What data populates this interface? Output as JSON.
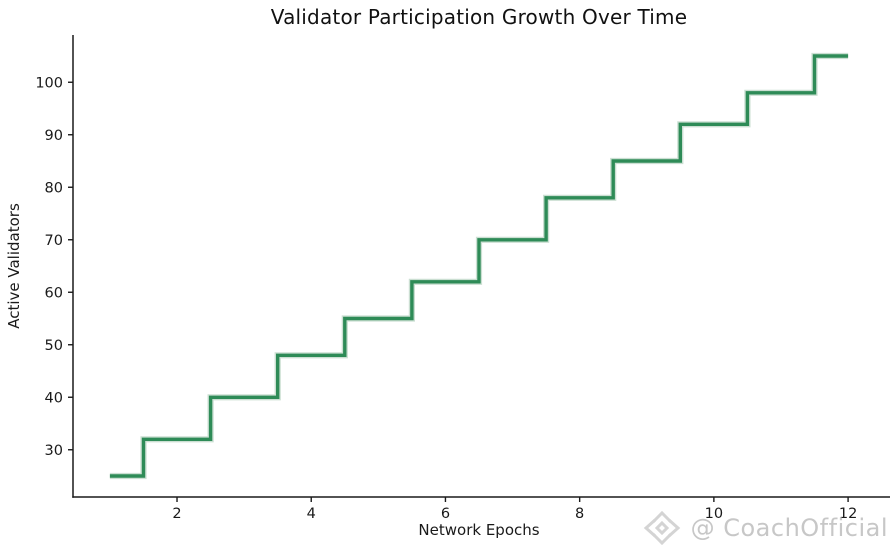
{
  "title": "Validator Participation Growth Over Time",
  "watermark": {
    "icon": "diamond-logo-icon",
    "handle": "@ CoachOfficial",
    "color": "#c7c7c7"
  },
  "chart_data": {
    "type": "line",
    "step_style": "mid",
    "title": "Validator Participation Growth Over Time",
    "xlabel": "Network Epochs",
    "ylabel": "Active Validators",
    "x": [
      1,
      2,
      3,
      4,
      5,
      6,
      7,
      8,
      9,
      10,
      11,
      12
    ],
    "series": [
      {
        "name": "Active Validators",
        "values": [
          25,
          32,
          40,
          48,
          55,
          62,
          70,
          78,
          85,
          92,
          98,
          105
        ]
      }
    ],
    "xticks": [
      2,
      4,
      6,
      8,
      10,
      12
    ],
    "yticks": [
      30,
      40,
      50,
      60,
      70,
      80,
      90,
      100
    ],
    "xlim": [
      0.45,
      12.55
    ],
    "ylim": [
      21,
      109
    ],
    "grid": false,
    "legend_position": "none",
    "line_color": "#2e8b57",
    "line_halo_color": "#cbdfd2",
    "axis_color": "#1a1a1a",
    "background": "#ffffff"
  }
}
